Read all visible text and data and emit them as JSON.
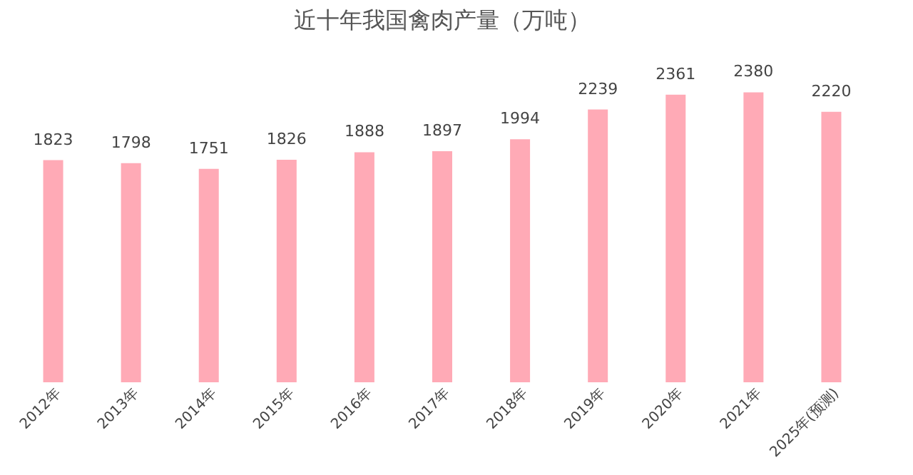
{
  "chart_data": {
    "type": "bar",
    "title": "近十年我国禽肉产量（万吨）",
    "categories": [
      "2012年",
      "2013年",
      "2014年",
      "2015年",
      "2016年",
      "2017年",
      "2018年",
      "2019年",
      "2020年",
      "2021年",
      "2025年(预测)"
    ],
    "values": [
      1823,
      1798,
      1751,
      1826,
      1888,
      1897,
      1994,
      2239,
      2361,
      2380,
      2220
    ],
    "color": "#ffaab6",
    "data_labels": true
  }
}
